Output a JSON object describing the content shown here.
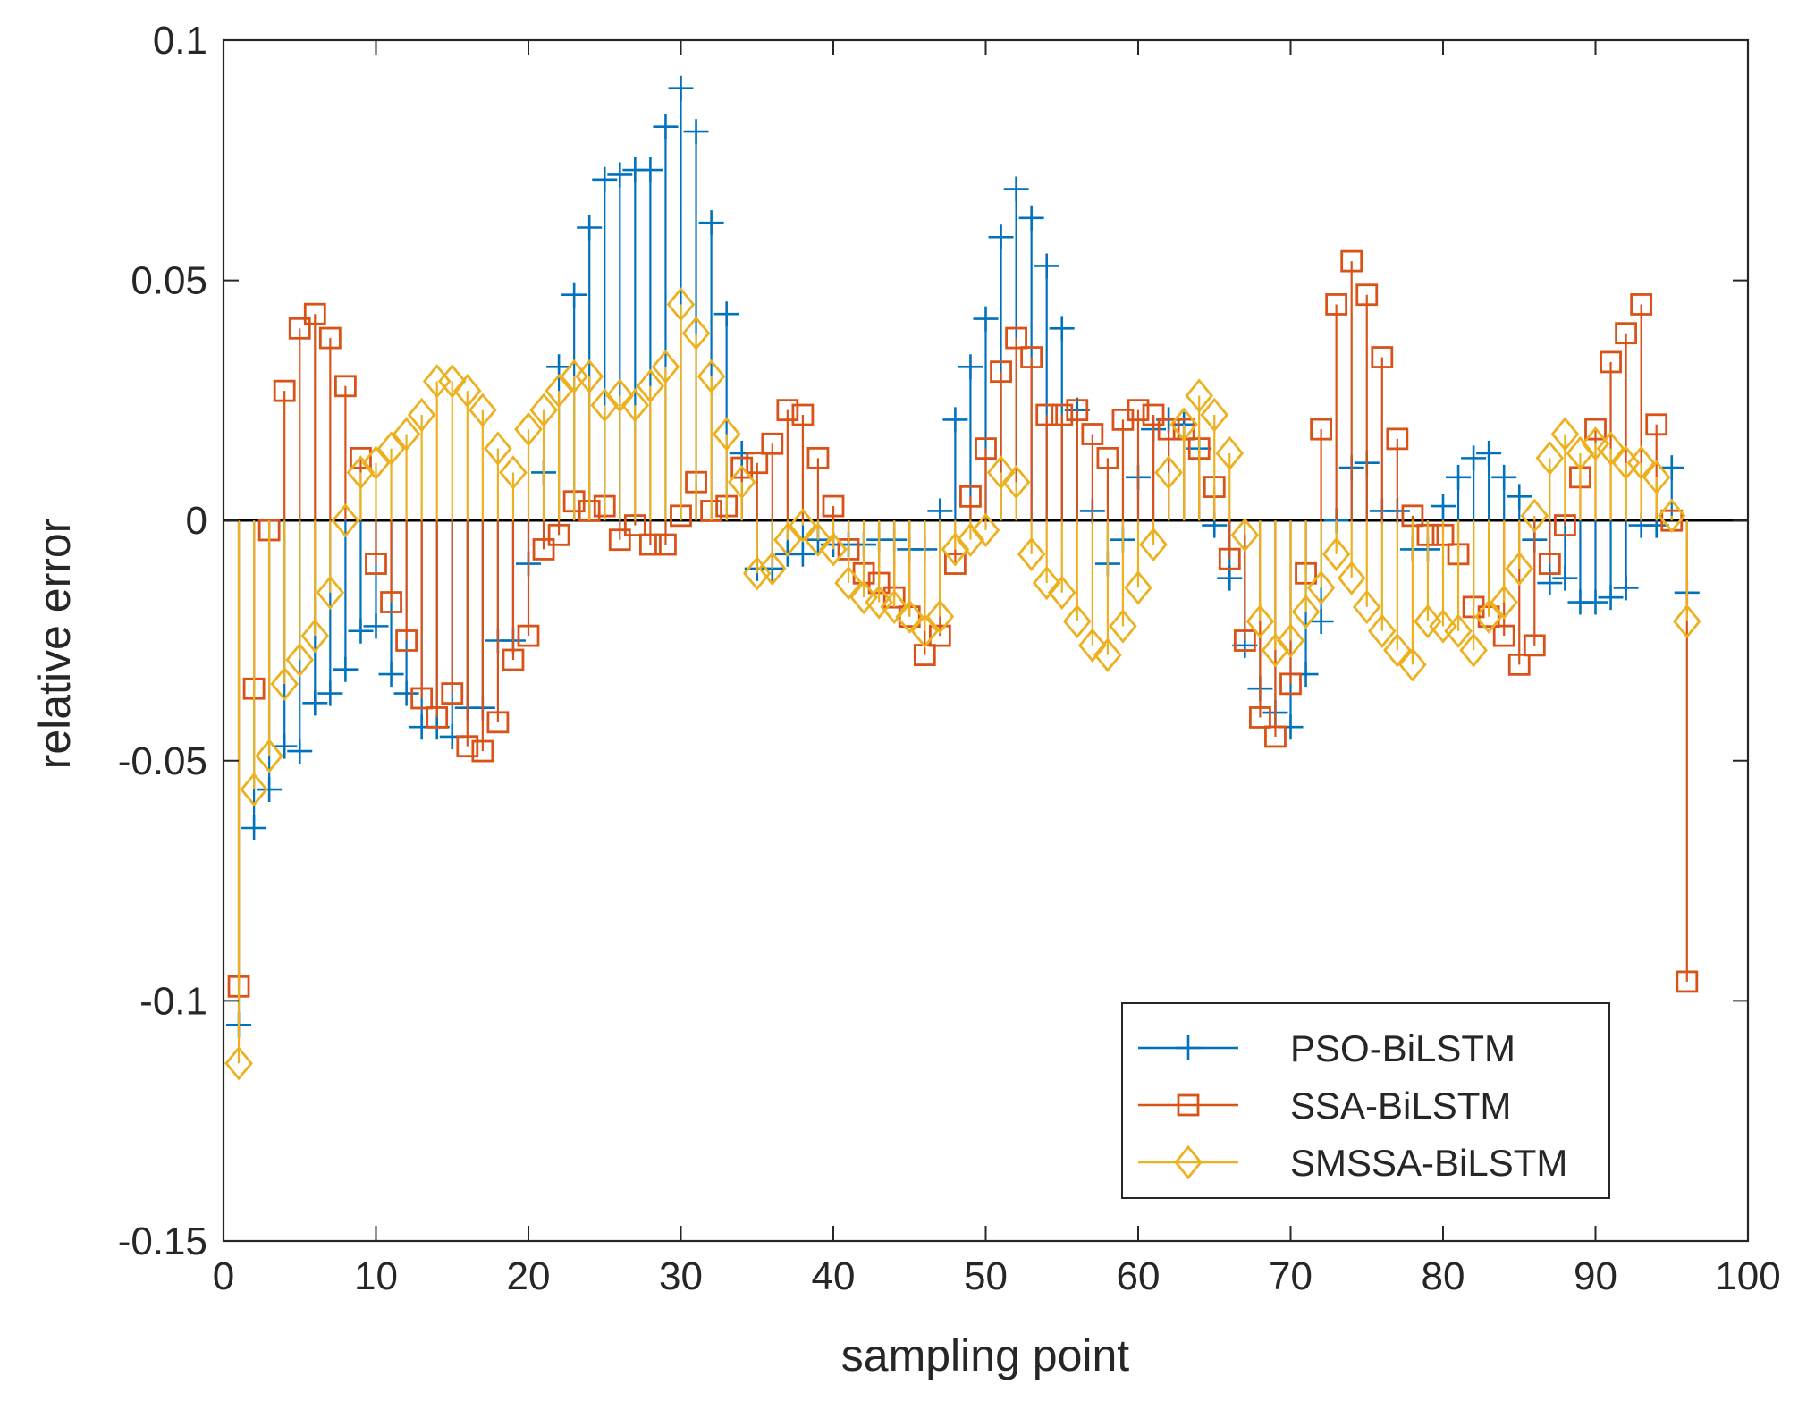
{
  "chart_data": {
    "type": "stem",
    "title": "",
    "xlabel": "sampling point",
    "ylabel": "relative error",
    "xlim": [
      0,
      100
    ],
    "ylim": [
      -0.15,
      0.1
    ],
    "xticks": [
      0,
      10,
      20,
      30,
      40,
      50,
      60,
      70,
      80,
      90,
      100
    ],
    "yticks": [
      -0.15,
      -0.1,
      -0.05,
      0,
      0.05,
      0.1
    ],
    "xtick_labels": [
      "0",
      "10",
      "20",
      "30",
      "40",
      "50",
      "60",
      "70",
      "80",
      "90",
      "100"
    ],
    "ytick_labels": [
      "-0.15",
      "-0.1",
      "-0.05",
      "0",
      "0.05",
      "0.1"
    ],
    "grid": false,
    "legend_position": "bottom-right",
    "series": [
      {
        "name": "PSO-BiLSTM",
        "color": "#0072BD",
        "marker": "plus",
        "x": [
          1,
          2,
          3,
          4,
          5,
          6,
          7,
          8,
          9,
          10,
          11,
          12,
          13,
          14,
          15,
          16,
          17,
          18,
          19,
          20,
          21,
          22,
          23,
          24,
          25,
          26,
          27,
          28,
          29,
          30,
          31,
          32,
          33,
          34,
          35,
          36,
          37,
          38,
          39,
          40,
          41,
          42,
          43,
          44,
          45,
          46,
          47,
          48,
          49,
          50,
          51,
          52,
          53,
          54,
          55,
          56,
          57,
          58,
          59,
          60,
          61,
          62,
          63,
          64,
          65,
          66,
          67,
          68,
          69,
          70,
          71,
          72,
          73,
          74,
          75,
          76,
          77,
          78,
          79,
          80,
          81,
          82,
          83,
          84,
          85,
          86,
          87,
          88,
          89,
          90,
          91,
          92,
          93,
          94,
          95,
          96
        ],
        "values": [
          -0.105,
          -0.064,
          -0.056,
          -0.047,
          -0.048,
          -0.038,
          -0.036,
          -0.031,
          -0.023,
          -0.022,
          -0.032,
          -0.036,
          -0.043,
          -0.043,
          -0.045,
          -0.039,
          -0.039,
          -0.025,
          -0.025,
          -0.009,
          0.01,
          0.032,
          0.047,
          0.061,
          0.071,
          0.072,
          0.073,
          0.073,
          0.082,
          0.09,
          0.081,
          0.062,
          0.043,
          0.014,
          -0.01,
          -0.01,
          -0.007,
          -0.007,
          -0.004,
          -0.005,
          -0.005,
          -0.005,
          -0.004,
          -0.004,
          -0.006,
          -0.006,
          0.002,
          0.021,
          0.032,
          0.042,
          0.059,
          0.069,
          0.063,
          0.053,
          0.04,
          0.023,
          0.002,
          -0.009,
          -0.004,
          0.009,
          0.019,
          0.021,
          0.02,
          0.015,
          -0.001,
          -0.012,
          -0.026,
          -0.035,
          -0.04,
          -0.043,
          -0.032,
          -0.021,
          0.0,
          0.011,
          0.012,
          0.002,
          0.002,
          -0.006,
          -0.006,
          0.003,
          0.009,
          0.013,
          0.014,
          0.009,
          0.005,
          -0.004,
          -0.013,
          -0.012,
          -0.017,
          -0.017,
          -0.016,
          -0.014,
          -0.001,
          -0.001,
          0.011,
          -0.015
        ]
      },
      {
        "name": "SSA-BiLSTM",
        "color": "#D95319",
        "marker": "square",
        "x": [
          1,
          2,
          3,
          4,
          5,
          6,
          7,
          8,
          9,
          10,
          11,
          12,
          13,
          14,
          15,
          16,
          17,
          18,
          19,
          20,
          21,
          22,
          23,
          24,
          25,
          26,
          27,
          28,
          29,
          30,
          31,
          32,
          33,
          34,
          35,
          36,
          37,
          38,
          39,
          40,
          41,
          42,
          43,
          44,
          45,
          46,
          47,
          48,
          49,
          50,
          51,
          52,
          53,
          54,
          55,
          56,
          57,
          58,
          59,
          60,
          61,
          62,
          63,
          64,
          65,
          66,
          67,
          68,
          69,
          70,
          71,
          72,
          73,
          74,
          75,
          76,
          77,
          78,
          79,
          80,
          81,
          82,
          83,
          84,
          85,
          86,
          87,
          88,
          89,
          90,
          91,
          92,
          93,
          94,
          95,
          96
        ],
        "values": [
          -0.097,
          -0.035,
          -0.002,
          0.027,
          0.04,
          0.043,
          0.038,
          0.028,
          0.013,
          -0.009,
          -0.017,
          -0.025,
          -0.037,
          -0.041,
          -0.036,
          -0.047,
          -0.048,
          -0.042,
          -0.029,
          -0.024,
          -0.006,
          -0.003,
          0.004,
          0.002,
          0.003,
          -0.004,
          -0.001,
          -0.005,
          -0.005,
          0.001,
          0.008,
          0.002,
          0.003,
          0.011,
          0.012,
          0.016,
          0.023,
          0.022,
          0.013,
          0.003,
          -0.006,
          -0.011,
          -0.013,
          -0.016,
          -0.02,
          -0.028,
          -0.024,
          -0.009,
          0.005,
          0.015,
          0.031,
          0.038,
          0.034,
          0.022,
          0.022,
          0.023,
          0.018,
          0.013,
          0.021,
          0.023,
          0.022,
          0.019,
          0.019,
          0.015,
          0.007,
          -0.008,
          -0.025,
          -0.041,
          -0.045,
          -0.034,
          -0.011,
          0.019,
          0.045,
          0.054,
          0.047,
          0.034,
          0.017,
          0.001,
          -0.003,
          -0.003,
          -0.007,
          -0.018,
          -0.02,
          -0.024,
          -0.03,
          -0.026,
          -0.009,
          -0.001,
          0.009,
          0.019,
          0.033,
          0.039,
          0.045,
          0.02,
          0.0,
          -0.096
        ]
      },
      {
        "name": "SMSSA-BiLSTM",
        "color": "#EDB120",
        "marker": "diamond",
        "x": [
          1,
          2,
          3,
          4,
          5,
          6,
          7,
          8,
          9,
          10,
          11,
          12,
          13,
          14,
          15,
          16,
          17,
          18,
          19,
          20,
          21,
          22,
          23,
          24,
          25,
          26,
          27,
          28,
          29,
          30,
          31,
          32,
          33,
          34,
          35,
          36,
          37,
          38,
          39,
          40,
          41,
          42,
          43,
          44,
          45,
          46,
          47,
          48,
          49,
          50,
          51,
          52,
          53,
          54,
          55,
          56,
          57,
          58,
          59,
          60,
          61,
          62,
          63,
          64,
          65,
          66,
          67,
          68,
          69,
          70,
          71,
          72,
          73,
          74,
          75,
          76,
          77,
          78,
          79,
          80,
          81,
          82,
          83,
          84,
          85,
          86,
          87,
          88,
          89,
          90,
          91,
          92,
          93,
          94,
          95,
          96
        ],
        "values": [
          -0.113,
          -0.056,
          -0.049,
          -0.034,
          -0.029,
          -0.024,
          -0.015,
          0.0,
          0.01,
          0.012,
          0.015,
          0.018,
          0.022,
          0.029,
          0.029,
          0.027,
          0.023,
          0.015,
          0.01,
          0.019,
          0.023,
          0.027,
          0.03,
          0.03,
          0.024,
          0.026,
          0.024,
          0.028,
          0.032,
          0.045,
          0.039,
          0.03,
          0.018,
          0.008,
          -0.011,
          -0.01,
          -0.004,
          -0.001,
          -0.004,
          -0.006,
          -0.013,
          -0.016,
          -0.017,
          -0.018,
          -0.02,
          -0.023,
          -0.02,
          -0.006,
          -0.004,
          -0.002,
          0.01,
          0.008,
          -0.007,
          -0.013,
          -0.015,
          -0.021,
          -0.026,
          -0.028,
          -0.022,
          -0.014,
          -0.005,
          0.01,
          0.02,
          0.026,
          0.022,
          0.014,
          -0.003,
          -0.021,
          -0.027,
          -0.025,
          -0.019,
          -0.014,
          -0.007,
          -0.012,
          -0.018,
          -0.023,
          -0.027,
          -0.03,
          -0.021,
          -0.022,
          -0.023,
          -0.027,
          -0.02,
          -0.017,
          -0.01,
          0.001,
          0.013,
          0.018,
          0.014,
          0.016,
          0.015,
          0.012,
          0.012,
          0.009,
          0.001,
          -0.021
        ]
      }
    ]
  }
}
